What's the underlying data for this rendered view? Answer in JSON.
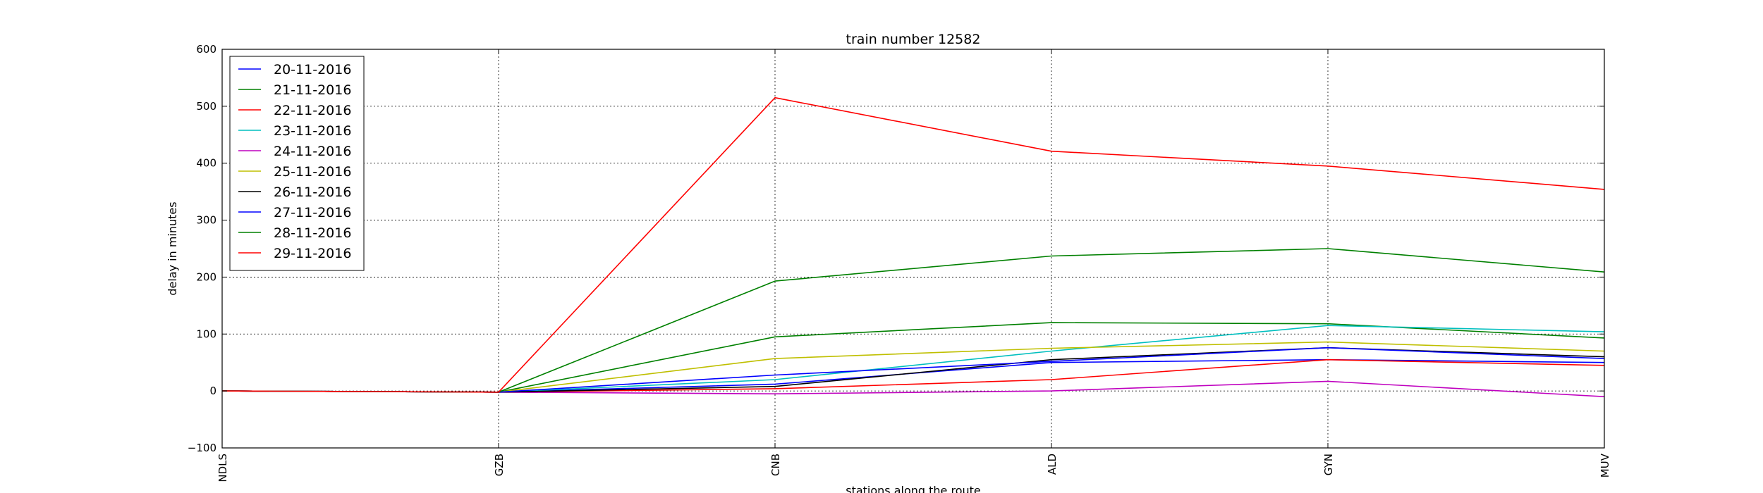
{
  "chart_data": {
    "type": "line",
    "title": "train number 12582",
    "xlabel": "stations along the route",
    "ylabel": "delay in minutes",
    "categories": [
      "NDLS",
      "GZB",
      "CNB",
      "ALD",
      "GYN",
      "MUV"
    ],
    "ylim": [
      -100,
      600
    ],
    "yticks": [
      -100,
      0,
      100,
      200,
      300,
      400,
      500,
      600
    ],
    "grid": true,
    "legend_position": "top-left",
    "series": [
      {
        "name": "20-11-2016",
        "color": "#0000ff",
        "values": [
          0,
          -2,
          12,
          50,
          55,
          50
        ]
      },
      {
        "name": "21-11-2016",
        "color": "#008000",
        "values": [
          0,
          -2,
          95,
          120,
          118,
          93
        ]
      },
      {
        "name": "22-11-2016",
        "color": "#ff0000",
        "values": [
          0,
          -2,
          4,
          20,
          55,
          45
        ]
      },
      {
        "name": "23-11-2016",
        "color": "#00bfbf",
        "values": [
          0,
          -2,
          20,
          70,
          115,
          104
        ]
      },
      {
        "name": "24-11-2016",
        "color": "#bf00bf",
        "values": [
          0,
          -2,
          -5,
          0,
          17,
          -10
        ]
      },
      {
        "name": "25-11-2016",
        "color": "#bfbf00",
        "values": [
          0,
          -2,
          57,
          75,
          86,
          70
        ]
      },
      {
        "name": "26-11-2016",
        "color": "#000000",
        "values": [
          0,
          -2,
          8,
          55,
          76,
          60
        ]
      },
      {
        "name": "27-11-2016",
        "color": "#0000ff",
        "values": [
          0,
          -2,
          28,
          52,
          76,
          57
        ]
      },
      {
        "name": "28-11-2016",
        "color": "#008000",
        "values": [
          0,
          -2,
          193,
          237,
          250,
          209
        ]
      },
      {
        "name": "29-11-2016",
        "color": "#ff0000",
        "values": [
          0,
          -2,
          515,
          421,
          395,
          354
        ]
      }
    ]
  }
}
